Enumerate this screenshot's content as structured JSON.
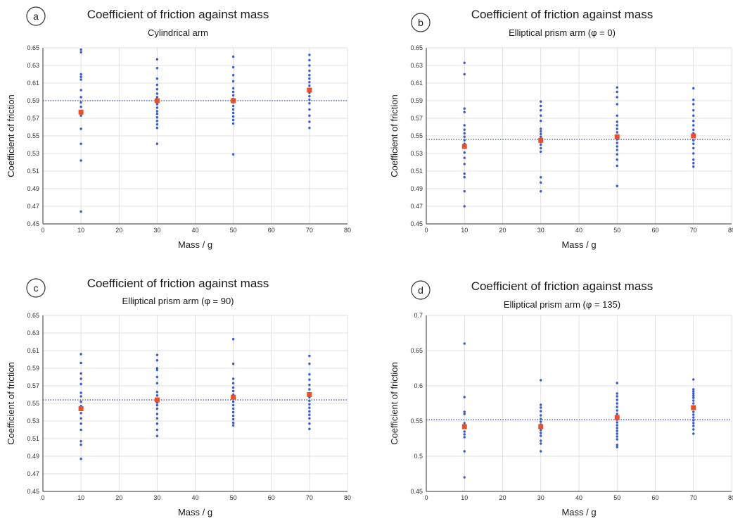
{
  "chart_data": [
    {
      "type": "scatter",
      "panel": "a",
      "title": "Coefficient of friction against mass",
      "subtitle": "Cylindrical arm",
      "xlabel": "Mass / g",
      "ylabel": "Coefficient of friction",
      "xlim": [
        0,
        80
      ],
      "ylim": [
        0.45,
        0.65
      ],
      "xticks": [
        0,
        10,
        20,
        30,
        40,
        50,
        60,
        70,
        80
      ],
      "yticks": [
        0.45,
        0.47,
        0.49,
        0.51,
        0.53,
        0.55,
        0.57,
        0.59,
        0.61,
        0.63,
        0.65
      ],
      "ytick_decimals": 2,
      "grid": true,
      "reference_line": 0.59,
      "colors": {
        "points": "#3a5bc7",
        "mean": "#e8502a",
        "reference": "#3a4fa8"
      },
      "series": [
        {
          "x": 10,
          "values": [
            0.648,
            0.645,
            0.62,
            0.617,
            0.614,
            0.602,
            0.594,
            0.588,
            0.583,
            0.578,
            0.573,
            0.558,
            0.541,
            0.522,
            0.464
          ]
        },
        {
          "x": 30,
          "values": [
            0.637,
            0.627,
            0.615,
            0.608,
            0.603,
            0.598,
            0.594,
            0.59,
            0.586,
            0.582,
            0.578,
            0.575,
            0.571,
            0.567,
            0.563,
            0.559,
            0.541
          ]
        },
        {
          "x": 50,
          "values": [
            0.64,
            0.628,
            0.619,
            0.612,
            0.604,
            0.6,
            0.596,
            0.592,
            0.588,
            0.584,
            0.58,
            0.576,
            0.572,
            0.568,
            0.564,
            0.529
          ]
        },
        {
          "x": 70,
          "values": [
            0.642,
            0.636,
            0.63,
            0.624,
            0.619,
            0.615,
            0.611,
            0.607,
            0.603,
            0.599,
            0.595,
            0.591,
            0.587,
            0.58,
            0.573,
            0.566,
            0.559
          ]
        }
      ],
      "means": [
        {
          "x": 10,
          "y": 0.577
        },
        {
          "x": 30,
          "y": 0.59
        },
        {
          "x": 50,
          "y": 0.59
        },
        {
          "x": 70,
          "y": 0.602
        }
      ]
    },
    {
      "type": "scatter",
      "panel": "b",
      "title": "Coefficient of friction against mass",
      "subtitle": "Elliptical prism arm (φ = 0)",
      "xlabel": "Mass / g",
      "ylabel": "Coefficient of friction",
      "xlim": [
        0,
        80
      ],
      "ylim": [
        0.45,
        0.65
      ],
      "xticks": [
        0,
        10,
        20,
        30,
        40,
        50,
        60,
        70,
        80
      ],
      "yticks": [
        0.45,
        0.47,
        0.49,
        0.51,
        0.53,
        0.55,
        0.57,
        0.59,
        0.61,
        0.63,
        0.65
      ],
      "ytick_decimals": 2,
      "grid": true,
      "reference_line": 0.546,
      "colors": {
        "points": "#3a5bc7",
        "mean": "#e8502a",
        "reference": "#3a4fa8"
      },
      "series": [
        {
          "x": 10,
          "values": [
            0.633,
            0.62,
            0.581,
            0.577,
            0.562,
            0.557,
            0.553,
            0.549,
            0.545,
            0.541,
            0.537,
            0.531,
            0.525,
            0.518,
            0.507,
            0.503,
            0.487,
            0.47
          ]
        },
        {
          "x": 30,
          "values": [
            0.589,
            0.584,
            0.579,
            0.573,
            0.567,
            0.558,
            0.555,
            0.552,
            0.549,
            0.546,
            0.543,
            0.54,
            0.536,
            0.532,
            0.503,
            0.497,
            0.487
          ]
        },
        {
          "x": 50,
          "values": [
            0.605,
            0.6,
            0.594,
            0.586,
            0.573,
            0.566,
            0.562,
            0.558,
            0.554,
            0.55,
            0.546,
            0.542,
            0.538,
            0.534,
            0.529,
            0.523,
            0.516,
            0.493
          ]
        },
        {
          "x": 70,
          "values": [
            0.604,
            0.591,
            0.586,
            0.579,
            0.573,
            0.567,
            0.562,
            0.557,
            0.553,
            0.549,
            0.545,
            0.541,
            0.536,
            0.53,
            0.523,
            0.519,
            0.515
          ]
        }
      ],
      "means": [
        {
          "x": 10,
          "y": 0.538
        },
        {
          "x": 30,
          "y": 0.545
        },
        {
          "x": 50,
          "y": 0.549
        },
        {
          "x": 70,
          "y": 0.55
        }
      ]
    },
    {
      "type": "scatter",
      "panel": "c",
      "title": "Coefficient of friction against mass",
      "subtitle": "Elliptical prism arm (φ = 90)",
      "xlabel": "Mass / g",
      "ylabel": "Coefficient of friction",
      "xlim": [
        0,
        80
      ],
      "ylim": [
        0.45,
        0.65
      ],
      "xticks": [
        0,
        10,
        20,
        30,
        40,
        50,
        60,
        70,
        80
      ],
      "yticks": [
        0.45,
        0.47,
        0.49,
        0.51,
        0.53,
        0.55,
        0.57,
        0.59,
        0.61,
        0.63,
        0.65
      ],
      "ytick_decimals": 2,
      "grid": true,
      "reference_line": 0.554,
      "colors": {
        "points": "#3a5bc7",
        "mean": "#e8502a",
        "reference": "#3a4fa8"
      },
      "series": [
        {
          "x": 10,
          "values": [
            0.606,
            0.596,
            0.584,
            0.578,
            0.572,
            0.562,
            0.558,
            0.552,
            0.547,
            0.543,
            0.539,
            0.533,
            0.527,
            0.52,
            0.507,
            0.503,
            0.487
          ]
        },
        {
          "x": 30,
          "values": [
            0.605,
            0.599,
            0.59,
            0.588,
            0.58,
            0.573,
            0.563,
            0.559,
            0.555,
            0.551,
            0.548,
            0.544,
            0.538,
            0.533,
            0.527,
            0.52,
            0.513
          ]
        },
        {
          "x": 50,
          "values": [
            0.623,
            0.595,
            0.578,
            0.573,
            0.568,
            0.564,
            0.56,
            0.556,
            0.552,
            0.548,
            0.544,
            0.54,
            0.536,
            0.532,
            0.528,
            0.525
          ]
        },
        {
          "x": 70,
          "values": [
            0.604,
            0.595,
            0.583,
            0.577,
            0.571,
            0.566,
            0.561,
            0.557,
            0.553,
            0.549,
            0.545,
            0.541,
            0.537,
            0.533,
            0.527,
            0.521
          ]
        }
      ],
      "means": [
        {
          "x": 10,
          "y": 0.544
        },
        {
          "x": 30,
          "y": 0.554
        },
        {
          "x": 50,
          "y": 0.557
        },
        {
          "x": 70,
          "y": 0.56
        }
      ]
    },
    {
      "type": "scatter",
      "panel": "d",
      "title": "Coefficient of friction against mass",
      "subtitle": "Elliptical prism arm (φ = 135)",
      "xlabel": "Mass / g",
      "ylabel": "Coefficient of friction",
      "xlim": [
        0,
        80
      ],
      "ylim": [
        0.45,
        0.7
      ],
      "xticks": [
        0,
        10,
        20,
        30,
        40,
        50,
        60,
        70,
        80
      ],
      "yticks": [
        0.45,
        0.5,
        0.55,
        0.6,
        0.65,
        0.7
      ],
      "ytick_decimals": "auto",
      "grid": true,
      "reference_line": 0.552,
      "colors": {
        "points": "#3a5bc7",
        "mean": "#e8502a",
        "reference": "#3a4fa8"
      },
      "series": [
        {
          "x": 10,
          "values": [
            0.66,
            0.584,
            0.563,
            0.56,
            0.547,
            0.541,
            0.535,
            0.531,
            0.527,
            0.507,
            0.47
          ]
        },
        {
          "x": 30,
          "values": [
            0.608,
            0.573,
            0.569,
            0.564,
            0.558,
            0.553,
            0.549,
            0.545,
            0.541,
            0.537,
            0.533,
            0.529,
            0.522,
            0.518,
            0.507
          ]
        },
        {
          "x": 50,
          "values": [
            0.604,
            0.589,
            0.585,
            0.58,
            0.575,
            0.57,
            0.565,
            0.56,
            0.556,
            0.552,
            0.548,
            0.544,
            0.54,
            0.536,
            0.532,
            0.528,
            0.524,
            0.516,
            0.513
          ]
        },
        {
          "x": 70,
          "values": [
            0.609,
            0.595,
            0.592,
            0.589,
            0.586,
            0.583,
            0.579,
            0.575,
            0.571,
            0.567,
            0.563,
            0.559,
            0.555,
            0.551,
            0.547,
            0.543,
            0.538,
            0.532
          ]
        }
      ],
      "means": [
        {
          "x": 10,
          "y": 0.542
        },
        {
          "x": 30,
          "y": 0.542
        },
        {
          "x": 50,
          "y": 0.555
        },
        {
          "x": 70,
          "y": 0.569
        }
      ]
    }
  ]
}
